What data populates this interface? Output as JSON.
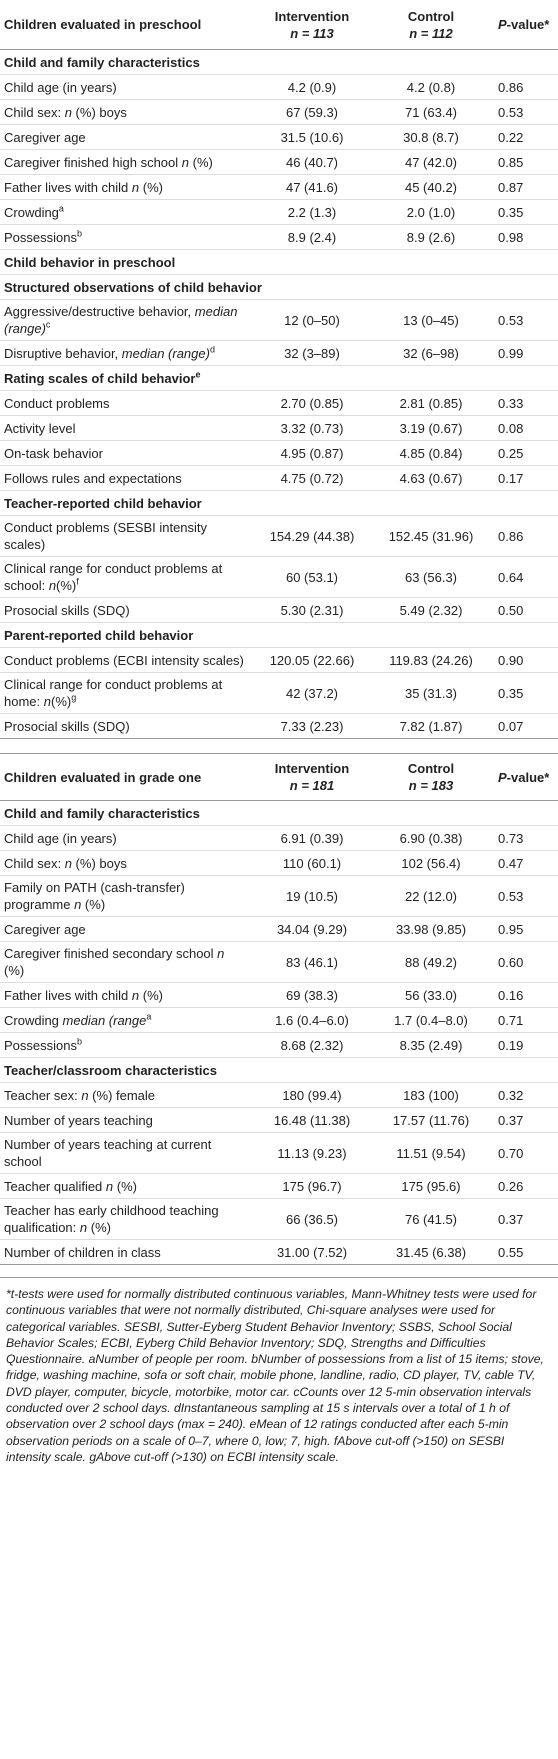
{
  "table1": {
    "header": {
      "col1": "Children evaluated in preschool",
      "col2a": "Intervention",
      "col2b": "n = 113",
      "col3a": "Control",
      "col3b": "n = 112",
      "col4": "P-value*"
    },
    "rows": [
      {
        "type": "section",
        "label": "Child and family characteristics"
      },
      {
        "type": "data",
        "label": "Child age (in years)",
        "i": "4.2 (0.9)",
        "c": "4.2 (0.8)",
        "p": "0.86"
      },
      {
        "type": "data",
        "label": "Child sex: n (%) boys",
        "i": "67 (59.3)",
        "c": "71 (63.4)",
        "p": "0.53"
      },
      {
        "type": "data",
        "label": "Caregiver age",
        "i": "31.5 (10.6)",
        "c": "30.8 (8.7)",
        "p": "0.22"
      },
      {
        "type": "data",
        "label": "Caregiver finished high school n (%)",
        "i": "46 (40.7)",
        "c": "47 (42.0)",
        "p": "0.85"
      },
      {
        "type": "data",
        "label": "Father lives with child n (%)",
        "i": "47 (41.6)",
        "c": "45 (40.2)",
        "p": "0.87"
      },
      {
        "type": "data",
        "label": "Crowding",
        "sup": "a",
        "i": "2.2 (1.3)",
        "c": "2.0 (1.0)",
        "p": "0.35"
      },
      {
        "type": "data",
        "label": "Possessions",
        "sup": "b",
        "i": "8.9 (2.4)",
        "c": "8.9 (2.6)",
        "p": "0.98"
      },
      {
        "type": "section",
        "label": "Child behavior in preschool"
      },
      {
        "type": "section",
        "label": "Structured observations of child behavior"
      },
      {
        "type": "data",
        "label": "Aggressive/destructive behavior, median (range)",
        "sup": "c",
        "i": "12 (0–50)",
        "c": "13 (0–45)",
        "p": "0.53"
      },
      {
        "type": "data",
        "label": "Disruptive behavior, median (range)",
        "sup": "d",
        "i": "32 (3–89)",
        "c": "32 (6–98)",
        "p": "0.99"
      },
      {
        "type": "section",
        "label": "Rating scales of child behavior",
        "sup": "e"
      },
      {
        "type": "data",
        "label": "Conduct problems",
        "i": "2.70 (0.85)",
        "c": "2.81 (0.85)",
        "p": "0.33"
      },
      {
        "type": "data",
        "label": "Activity level",
        "i": "3.32 (0.73)",
        "c": "3.19 (0.67)",
        "p": "0.08"
      },
      {
        "type": "data",
        "label": "On-task behavior",
        "i": "4.95 (0.87)",
        "c": "4.85 (0.84)",
        "p": "0.25"
      },
      {
        "type": "data",
        "label": "Follows rules and expectations",
        "i": "4.75 (0.72)",
        "c": "4.63 (0.67)",
        "p": "0.17"
      },
      {
        "type": "section",
        "label": "Teacher-reported child behavior"
      },
      {
        "type": "data",
        "label": "Conduct problems (SESBI intensity scales)",
        "i": "154.29 (44.38)",
        "c": "152.45 (31.96)",
        "p": "0.86"
      },
      {
        "type": "data",
        "label": "Clinical range for conduct problems at school: n(%)",
        "sup": "f",
        "i": "60 (53.1)",
        "c": "63 (56.3)",
        "p": "0.64"
      },
      {
        "type": "data",
        "label": "Prosocial skills (SDQ)",
        "i": "5.30 (2.31)",
        "c": "5.49 (2.32)",
        "p": "0.50"
      },
      {
        "type": "section",
        "label": "Parent-reported child behavior"
      },
      {
        "type": "data",
        "label": "Conduct problems (ECBI intensity scales)",
        "i": "120.05 (22.66)",
        "c": "119.83 (24.26)",
        "p": "0.90"
      },
      {
        "type": "data",
        "label": "Clinical range for conduct problems at home: n(%)",
        "sup": "g",
        "i": "42 (37.2)",
        "c": "35 (31.3)",
        "p": "0.35"
      },
      {
        "type": "data",
        "label": "Prosocial skills (SDQ)",
        "i": "7.33 (2.23)",
        "c": "7.82 (1.87)",
        "p": "0.07"
      }
    ]
  },
  "table2": {
    "header": {
      "col1": "Children evaluated in grade one",
      "col2a": "Intervention",
      "col2b": "n = 181",
      "col3a": "Control",
      "col3b": "n = 183",
      "col4": "P-value*"
    },
    "rows": [
      {
        "type": "section",
        "label": "Child and family characteristics"
      },
      {
        "type": "data",
        "label": "Child age (in years)",
        "i": "6.91 (0.39)",
        "c": "6.90 (0.38)",
        "p": "0.73"
      },
      {
        "type": "data",
        "label": "Child sex: n (%) boys",
        "i": "110 (60.1)",
        "c": "102 (56.4)",
        "p": "0.47"
      },
      {
        "type": "data",
        "label": "Family on PATH (cash-transfer) programme n (%)",
        "i": "19 (10.5)",
        "c": "22 (12.0)",
        "p": "0.53"
      },
      {
        "type": "data",
        "label": "Caregiver age",
        "i": "34.04 (9.29)",
        "c": "33.98 (9.85)",
        "p": "0.95"
      },
      {
        "type": "data",
        "label": "Caregiver finished secondary school n (%)",
        "i": "83 (46.1)",
        "c": "88 (49.2)",
        "p": "0.60"
      },
      {
        "type": "data",
        "label": "Father lives with child n (%)",
        "i": "69 (38.3)",
        "c": "56 (33.0)",
        "p": "0.16"
      },
      {
        "type": "data",
        "label": "Crowding median (range",
        "sup": "a",
        "i": "1.6 (0.4–6.0)",
        "c": "1.7 (0.4–8.0)",
        "p": "0.71"
      },
      {
        "type": "data",
        "label": "Possessions",
        "sup": "b",
        "i": "8.68 (2.32)",
        "c": "8.35 (2.49)",
        "p": "0.19"
      },
      {
        "type": "section",
        "label": "Teacher/classroom characteristics"
      },
      {
        "type": "data",
        "label": "Teacher sex: n (%) female",
        "i": "180 (99.4)",
        "c": "183 (100)",
        "p": "0.32"
      },
      {
        "type": "data",
        "label": "Number of years teaching",
        "i": "16.48 (11.38)",
        "c": "17.57 (11.76)",
        "p": "0.37"
      },
      {
        "type": "data",
        "label": "Number of years teaching at current school",
        "i": "11.13 (9.23)",
        "c": "11.51 (9.54)",
        "p": "0.70"
      },
      {
        "type": "data",
        "label": "Teacher qualified n (%)",
        "i": "175 (96.7)",
        "c": "175 (95.6)",
        "p": "0.26"
      },
      {
        "type": "data",
        "label": "Teacher has early childhood teaching qualification: n (%)",
        "i": "66 (36.5)",
        "c": "76 (41.5)",
        "p": "0.37"
      },
      {
        "type": "data",
        "label": "Number of children in class",
        "i": "31.00 (7.52)",
        "c": "31.45 (6.38)",
        "p": "0.55"
      }
    ]
  },
  "footnote": "*t-tests were used for normally distributed continuous variables, Mann-Whitney tests were used for continuous variables that were not normally distributed, Chi-square analyses were used for categorical variables. SESBI, Sutter-Eyberg Student Behavior Inventory; SSBS, School Social Behavior Scales; ECBI, Eyberg Child Behavior Inventory; SDQ, Strengths and Difficulties Questionnaire. aNumber of people per room. bNumber of possessions from a list of 15 items; stove, fridge, washing machine, sofa or soft chair, mobile phone, landline, radio, CD player, TV, cable TV, DVD player, computer, bicycle, motorbike, motor car. cCounts over 12 5-min observation intervals conducted over 2 school days. dInstantaneous sampling at 15 s intervals over a total of 1 h of observation over 2 school days (max = 240). eMean of 12 ratings conducted after each 5-min observation periods on a scale of 0–7, where 0, low; 7, high. fAbove cut-off (>150) on SESBI intensity scale. gAbove cut-off (>130) on ECBI intensity scale."
}
